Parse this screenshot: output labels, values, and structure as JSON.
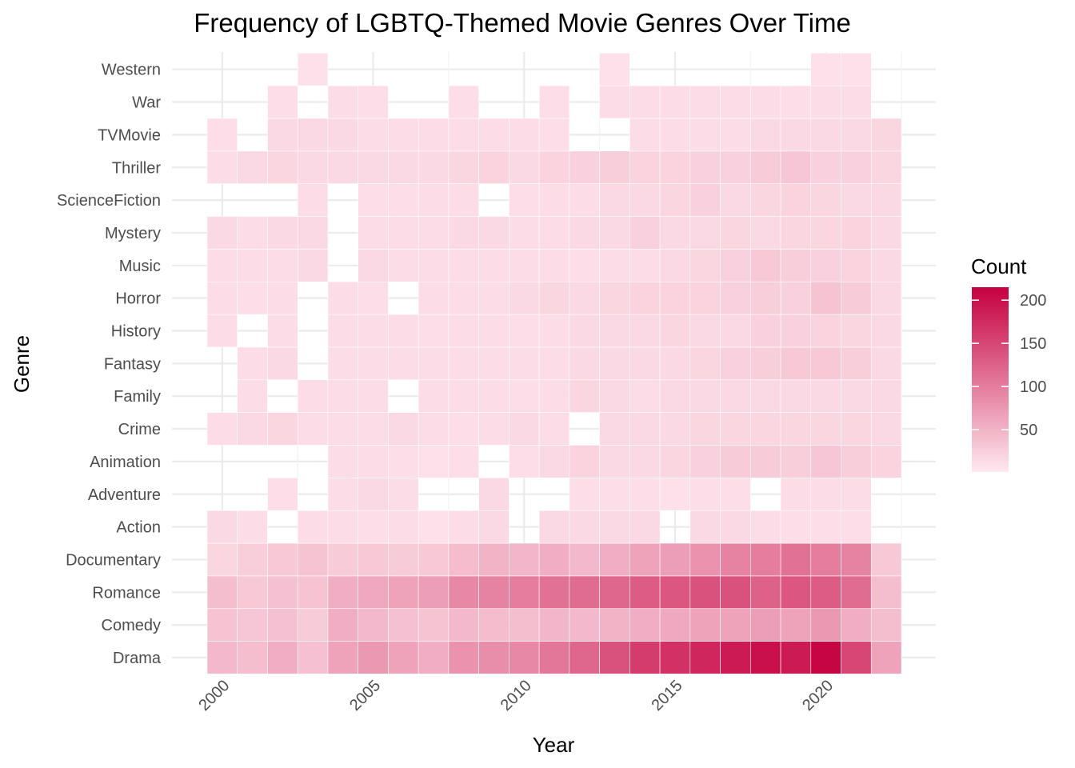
{
  "chart_data": {
    "type": "heatmap",
    "title": "Frequency of LGBTQ-Themed Movie Genres Over Time",
    "xlabel": "Year",
    "ylabel": "Genre",
    "x_ticks": [
      2000,
      2005,
      2010,
      2015,
      2020
    ],
    "x_range": [
      1999.5,
      2022.5
    ],
    "years": [
      2000,
      2001,
      2002,
      2003,
      2004,
      2005,
      2006,
      2007,
      2008,
      2009,
      2010,
      2011,
      2012,
      2013,
      2014,
      2015,
      2016,
      2017,
      2018,
      2019,
      2020,
      2021,
      2022
    ],
    "genres": [
      "Drama",
      "Comedy",
      "Romance",
      "Documentary",
      "Action",
      "Adventure",
      "Animation",
      "Crime",
      "Family",
      "Fantasy",
      "History",
      "Horror",
      "Music",
      "Mystery",
      "ScienceFiction",
      "Thriller",
      "TVMovie",
      "War",
      "Western"
    ],
    "values": {
      "Drama": [
        45,
        40,
        55,
        38,
        65,
        75,
        65,
        55,
        80,
        85,
        90,
        105,
        120,
        140,
        160,
        170,
        180,
        190,
        200,
        190,
        210,
        150,
        65
      ],
      "Comedy": [
        35,
        32,
        38,
        28,
        55,
        45,
        38,
        35,
        45,
        42,
        40,
        48,
        45,
        50,
        55,
        60,
        65,
        65,
        70,
        65,
        75,
        55,
        40
      ],
      "Romance": [
        40,
        30,
        38,
        35,
        55,
        60,
        65,
        70,
        90,
        95,
        100,
        110,
        115,
        120,
        130,
        135,
        140,
        140,
        125,
        135,
        130,
        115,
        40
      ],
      "Documentary": [
        18,
        25,
        30,
        35,
        28,
        30,
        28,
        30,
        42,
        50,
        48,
        55,
        45,
        55,
        65,
        70,
        80,
        95,
        100,
        110,
        100,
        95,
        30
      ],
      "Action": [
        15,
        12,
        null,
        12,
        12,
        10,
        12,
        8,
        12,
        15,
        null,
        15,
        15,
        15,
        15,
        null,
        15,
        15,
        12,
        10,
        10,
        10,
        null
      ],
      "Adventure": [
        null,
        null,
        10,
        null,
        12,
        15,
        12,
        null,
        null,
        15,
        null,
        null,
        10,
        10,
        10,
        8,
        10,
        10,
        null,
        12,
        12,
        12,
        null
      ],
      "Animation": [
        null,
        null,
        null,
        null,
        12,
        12,
        10,
        8,
        10,
        null,
        10,
        15,
        20,
        15,
        15,
        18,
        22,
        28,
        28,
        25,
        32,
        25,
        20
      ],
      "Crime": [
        12,
        15,
        18,
        12,
        12,
        12,
        15,
        12,
        10,
        12,
        15,
        12,
        null,
        15,
        15,
        15,
        18,
        18,
        18,
        18,
        18,
        18,
        15
      ],
      "Family": [
        null,
        12,
        null,
        12,
        12,
        12,
        null,
        12,
        12,
        12,
        10,
        12,
        18,
        15,
        12,
        15,
        15,
        15,
        15,
        15,
        15,
        15,
        15
      ],
      "Fantasy": [
        null,
        12,
        15,
        null,
        12,
        12,
        12,
        12,
        12,
        12,
        12,
        12,
        15,
        15,
        15,
        15,
        18,
        22,
        25,
        30,
        30,
        25,
        15
      ],
      "History": [
        12,
        null,
        12,
        null,
        12,
        12,
        12,
        10,
        12,
        12,
        10,
        12,
        15,
        15,
        15,
        18,
        15,
        15,
        22,
        22,
        20,
        18,
        15
      ],
      "Horror": [
        12,
        10,
        12,
        null,
        12,
        10,
        null,
        12,
        12,
        12,
        15,
        18,
        15,
        18,
        20,
        20,
        20,
        22,
        25,
        22,
        35,
        28,
        15
      ],
      "Music": [
        12,
        12,
        12,
        15,
        null,
        15,
        12,
        12,
        12,
        12,
        12,
        12,
        10,
        12,
        12,
        15,
        18,
        22,
        30,
        25,
        22,
        20,
        15
      ],
      "Mystery": [
        15,
        12,
        15,
        15,
        null,
        12,
        12,
        12,
        15,
        15,
        12,
        12,
        15,
        15,
        22,
        15,
        15,
        18,
        15,
        18,
        18,
        20,
        15
      ],
      "ScienceFiction": [
        null,
        null,
        null,
        12,
        null,
        10,
        10,
        12,
        12,
        null,
        10,
        12,
        12,
        15,
        15,
        18,
        22,
        15,
        18,
        20,
        18,
        15,
        15
      ],
      "Thriller": [
        12,
        15,
        18,
        15,
        15,
        15,
        15,
        15,
        18,
        20,
        15,
        20,
        22,
        25,
        20,
        20,
        22,
        22,
        28,
        32,
        22,
        22,
        18
      ],
      "TVMovie": [
        10,
        null,
        15,
        15,
        15,
        12,
        12,
        12,
        12,
        12,
        12,
        10,
        null,
        null,
        12,
        12,
        12,
        12,
        15,
        15,
        15,
        15,
        18
      ],
      "War": [
        null,
        null,
        10,
        null,
        12,
        10,
        null,
        null,
        10,
        null,
        null,
        10,
        null,
        12,
        12,
        12,
        12,
        12,
        12,
        10,
        12,
        12,
        null
      ],
      "Western": [
        null,
        null,
        null,
        8,
        null,
        null,
        null,
        null,
        null,
        null,
        null,
        null,
        null,
        8,
        null,
        null,
        null,
        null,
        null,
        null,
        8,
        8,
        null
      ]
    },
    "legend": {
      "title": "Count",
      "min": 1,
      "max": 215,
      "ticks": [
        50,
        100,
        150,
        200
      ],
      "color_low": "#ffe8ef",
      "color_high": "#c50040"
    },
    "grid": true,
    "legend_position": "right"
  }
}
